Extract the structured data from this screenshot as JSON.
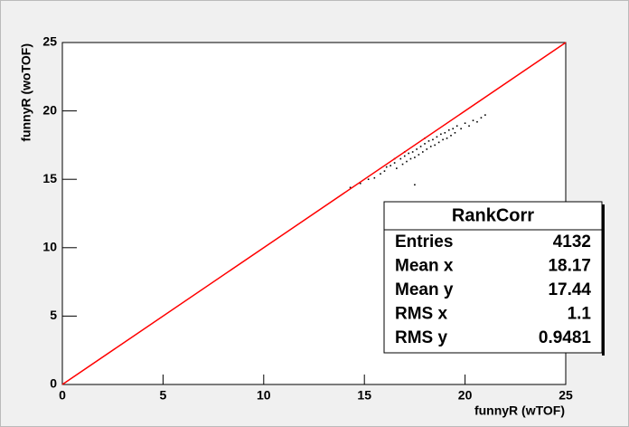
{
  "chart_data": {
    "type": "scatter",
    "x_label": "funnyR (wTOF)",
    "y_label": "funnyR (woTOF)",
    "xlim": [
      0,
      25
    ],
    "ylim": [
      0,
      25
    ],
    "xticks": [
      0,
      5,
      10,
      15,
      20,
      25
    ],
    "yticks": [
      0,
      5,
      10,
      15,
      20,
      25
    ],
    "series": [
      {
        "type": "scatter",
        "color": "#000000",
        "x": [
          14.3,
          14.8,
          15.2,
          15.5,
          15.8,
          16.0,
          16.1,
          16.3,
          16.5,
          16.6,
          16.8,
          16.9,
          17.0,
          17.1,
          17.2,
          17.3,
          17.4,
          17.5,
          17.6,
          17.7,
          17.8,
          17.9,
          18.0,
          18.1,
          18.2,
          18.3,
          18.4,
          18.5,
          18.6,
          18.7,
          18.8,
          18.9,
          19.0,
          19.1,
          19.2,
          19.3,
          19.4,
          19.5,
          19.6,
          19.8,
          20.0,
          20.2,
          20.4,
          20.6,
          20.8,
          21.0,
          17.5,
          16.5,
          17.0,
          18.0
        ],
        "values": [
          14.4,
          14.7,
          15.0,
          15.1,
          15.4,
          15.6,
          15.9,
          16.0,
          16.2,
          15.8,
          16.5,
          16.1,
          16.7,
          16.3,
          16.9,
          16.5,
          17.0,
          16.6,
          17.2,
          16.8,
          17.4,
          17.0,
          17.6,
          17.2,
          17.8,
          17.4,
          17.9,
          17.5,
          18.1,
          17.7,
          18.3,
          17.9,
          18.4,
          18.0,
          18.6,
          18.2,
          18.7,
          18.4,
          18.9,
          18.7,
          19.1,
          18.9,
          19.3,
          19.2,
          19.5,
          19.7,
          14.6,
          16.5,
          17.0,
          18.0
        ]
      },
      {
        "type": "line",
        "color": "#ff0000",
        "x": [
          0,
          25
        ],
        "values": [
          0,
          25
        ]
      }
    ],
    "stats": {
      "title": "RankCorr",
      "rows": [
        [
          "Entries",
          4132
        ],
        [
          "Mean x",
          18.17
        ],
        [
          "Mean y",
          17.44
        ],
        [
          "RMS x",
          1.1
        ],
        [
          "RMS y",
          0.9481
        ]
      ]
    }
  }
}
